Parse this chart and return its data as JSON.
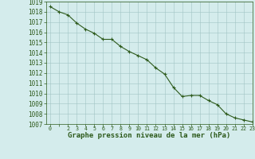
{
  "x": [
    0,
    1,
    2,
    3,
    4,
    5,
    6,
    7,
    8,
    9,
    10,
    11,
    12,
    13,
    14,
    15,
    16,
    17,
    18,
    19,
    20,
    21,
    22,
    23
  ],
  "y": [
    1018.5,
    1018.0,
    1017.7,
    1016.9,
    1016.3,
    1015.9,
    1015.3,
    1015.3,
    1014.6,
    1014.1,
    1013.7,
    1013.3,
    1012.5,
    1011.9,
    1010.6,
    1009.7,
    1009.8,
    1009.8,
    1009.3,
    1008.9,
    1008.0,
    1007.6,
    1007.4,
    1007.2
  ],
  "line_color": "#2d5a1b",
  "marker": "+",
  "marker_size": 3,
  "marker_lw": 0.8,
  "line_width": 0.8,
  "bg_color": "#d4ecec",
  "grid_color": "#a0c4c4",
  "xlabel": "Graphe pression niveau de la mer (hPa)",
  "xlabel_fontsize": 6.5,
  "ytick_fontsize": 5.5,
  "xtick_fontsize": 4.8,
  "ylim": [
    1007,
    1019
  ],
  "xlim": [
    -0.5,
    23
  ],
  "yticks": [
    1007,
    1008,
    1009,
    1010,
    1011,
    1012,
    1013,
    1014,
    1015,
    1016,
    1017,
    1018,
    1019
  ],
  "xticks": [
    0,
    1,
    2,
    3,
    4,
    5,
    6,
    7,
    8,
    9,
    10,
    11,
    12,
    13,
    14,
    15,
    16,
    17,
    18,
    19,
    20,
    21,
    22,
    23
  ],
  "xtick_labels": [
    "0",
    "",
    "2",
    "3",
    "4",
    "5",
    "6",
    "7",
    "8",
    "9",
    "10",
    "11",
    "12",
    "13",
    "14",
    "15",
    "16",
    "17",
    "18",
    "19",
    "20",
    "21",
    "22",
    "23"
  ],
  "tick_color": "#2d5a1b",
  "axis_color": "#2d5a1b",
  "font_family": "monospace"
}
